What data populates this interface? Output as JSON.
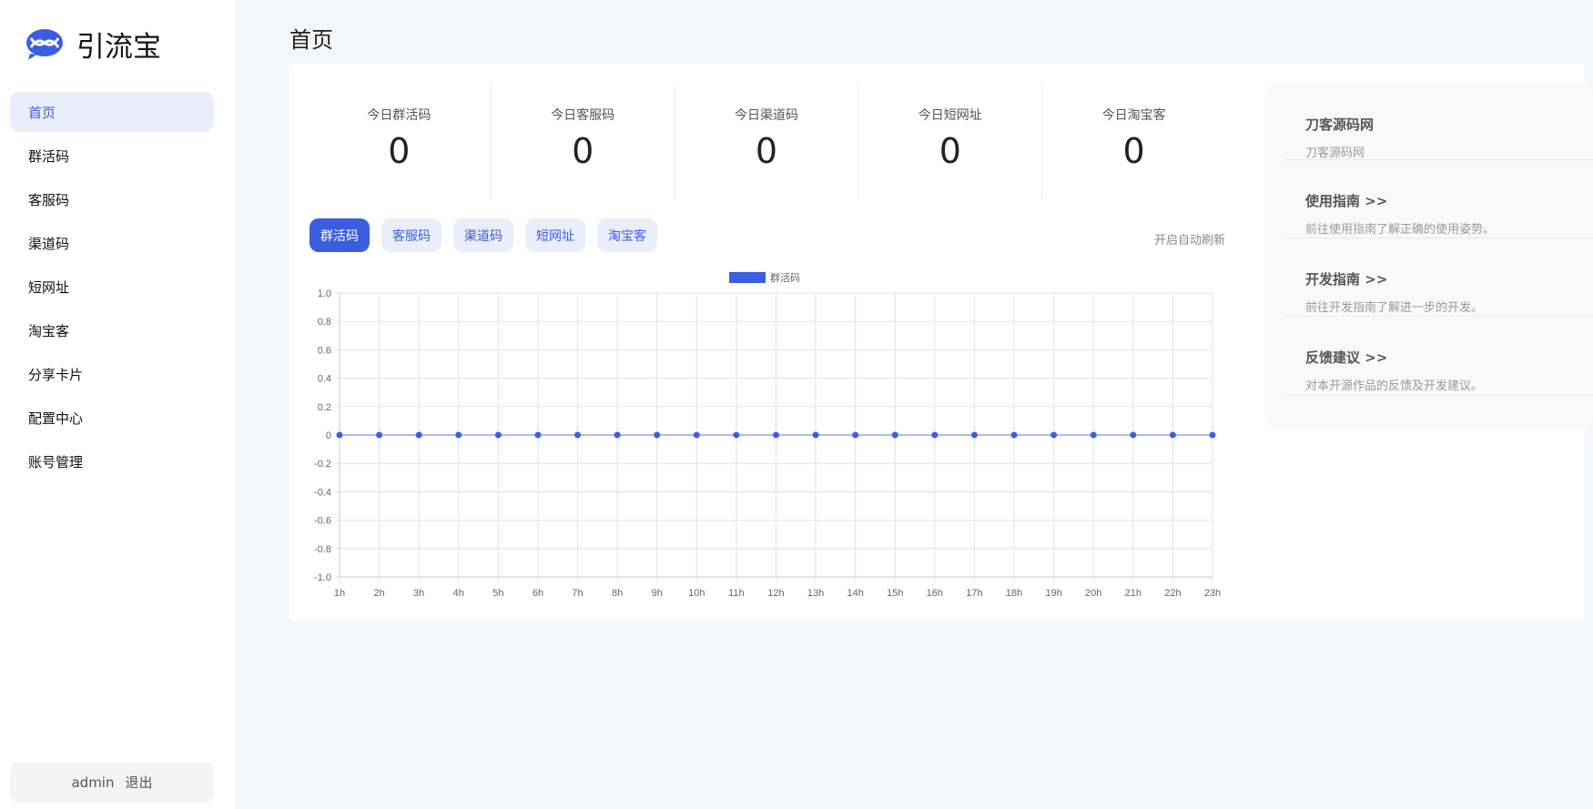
{
  "app": {
    "name": "引流宝"
  },
  "sidebar": {
    "items": [
      {
        "label": "首页",
        "active": true
      },
      {
        "label": "群活码"
      },
      {
        "label": "客服码"
      },
      {
        "label": "渠道码"
      },
      {
        "label": "短网址"
      },
      {
        "label": "淘宝客"
      },
      {
        "label": "分享卡片"
      },
      {
        "label": "配置中心"
      },
      {
        "label": "账号管理"
      }
    ],
    "user": "admin",
    "logout": "退出"
  },
  "page": {
    "title": "首页"
  },
  "stats": [
    {
      "label": "今日群活码",
      "value": "0"
    },
    {
      "label": "今日客服码",
      "value": "0"
    },
    {
      "label": "今日渠道码",
      "value": "0"
    },
    {
      "label": "今日短网址",
      "value": "0"
    },
    {
      "label": "今日淘宝客",
      "value": "0"
    }
  ],
  "tabs": [
    {
      "label": "群活码",
      "active": true
    },
    {
      "label": "客服码"
    },
    {
      "label": "渠道码"
    },
    {
      "label": "短网址"
    },
    {
      "label": "淘宝客"
    }
  ],
  "auto_refresh": "开启自动刷新",
  "colors": {
    "accent": "#3b5ee0"
  },
  "chart_data": {
    "type": "line",
    "categories": [
      "1h",
      "2h",
      "3h",
      "4h",
      "5h",
      "6h",
      "7h",
      "8h",
      "9h",
      "10h",
      "11h",
      "12h",
      "13h",
      "14h",
      "15h",
      "16h",
      "17h",
      "18h",
      "19h",
      "20h",
      "21h",
      "22h",
      "23h"
    ],
    "series": [
      {
        "name": "群活码",
        "values": [
          0,
          0,
          0,
          0,
          0,
          0,
          0,
          0,
          0,
          0,
          0,
          0,
          0,
          0,
          0,
          0,
          0,
          0,
          0,
          0,
          0,
          0,
          0
        ]
      }
    ],
    "ylim": [
      -1,
      1
    ],
    "yticks": [
      "1.0",
      "0.8",
      "0.6",
      "0.4",
      "0.2",
      "0",
      "-0.2",
      "-0.4",
      "-0.6",
      "-0.8",
      "-1.0"
    ],
    "grid": true,
    "legend": "top-center"
  },
  "panel": {
    "items": [
      {
        "title": "刀客源码网",
        "desc": "刀客源码网"
      },
      {
        "title": "使用指南 >>",
        "desc": "前往使用指南了解正确的使用姿势。"
      },
      {
        "title": "开发指南 >>",
        "desc": "前往开发指南了解进一步的开发。"
      },
      {
        "title": "反馈建议 >>",
        "desc": "对本开源作品的反馈及开发建议。"
      }
    ]
  }
}
